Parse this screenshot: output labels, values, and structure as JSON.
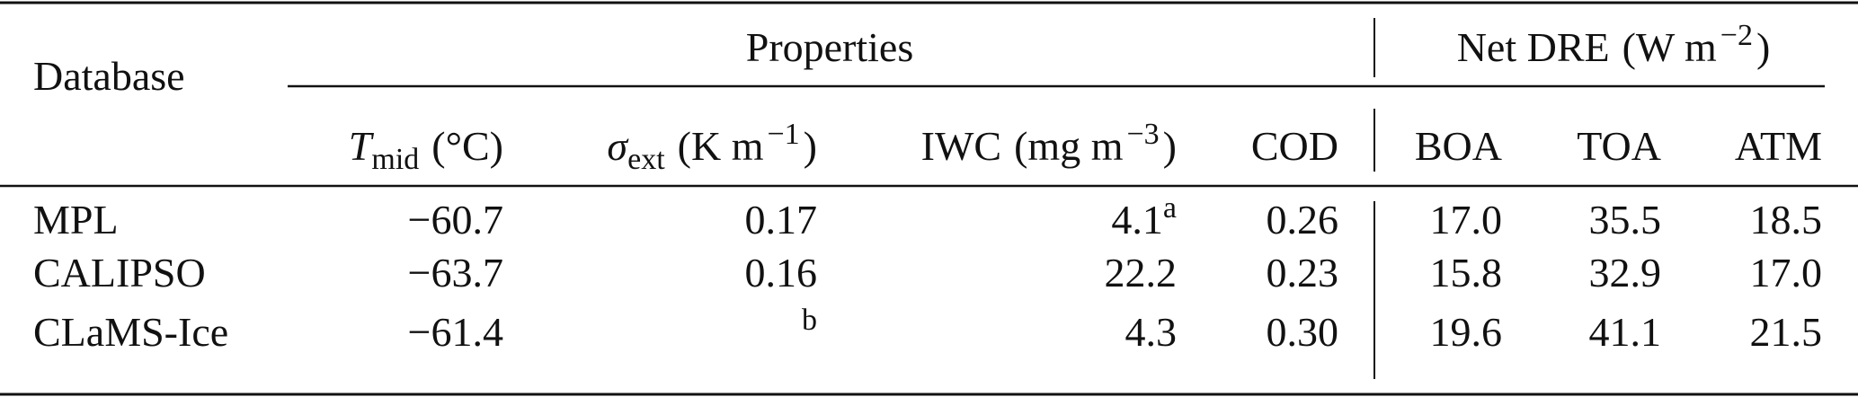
{
  "table": {
    "headers": {
      "database": "Database",
      "properties": "Properties",
      "net_dre": {
        "symbol": "Net DRE",
        "unit": "(W m",
        "sup": "−2",
        "close": ")"
      },
      "columns": [
        {
          "symbol": "T",
          "italic": true,
          "sub": "mid",
          "unit": "(°C)"
        },
        {
          "symbol": "σ",
          "italic": true,
          "sub": "ext",
          "unit": "(K m",
          "sup": "−1",
          "close": ")"
        },
        {
          "symbol": "IWC",
          "unit": "(mg m",
          "sup": "−3",
          "close": ")"
        },
        {
          "symbol": "COD"
        },
        {
          "symbol": "BOA"
        },
        {
          "symbol": "TOA"
        },
        {
          "symbol": "ATM"
        }
      ]
    },
    "rows": [
      {
        "database": "MPL",
        "cells": [
          "−60.7",
          "0.17",
          {
            "text": "4.1",
            "note": "a"
          },
          "0.26",
          "17.0",
          "35.5",
          "18.5"
        ]
      },
      {
        "database": "CALIPSO",
        "cells": [
          "−63.7",
          "0.16",
          "22.2",
          "0.23",
          "15.8",
          "32.9",
          "17.0"
        ]
      },
      {
        "database": "CLaMS-Ice",
        "cells": [
          "−61.4",
          {
            "note": "b"
          },
          "4.3",
          "0.30",
          "19.6",
          "41.1",
          "21.5"
        ]
      }
    ]
  }
}
